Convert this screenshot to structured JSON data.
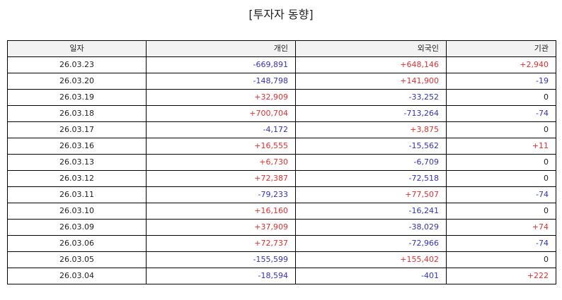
{
  "title": "[투자자 동향]",
  "colors": {
    "positive": "#e03030",
    "negative": "#3333bb",
    "neutral": "#222222"
  },
  "table": {
    "headers": [
      "일자",
      "개인",
      "외국인",
      "기관"
    ],
    "rows": [
      [
        "26.03.23",
        "-669,891",
        "+648,146",
        "+2,940"
      ],
      [
        "26.03.20",
        "-148,798",
        "+141,900",
        "-19"
      ],
      [
        "26.03.19",
        "+32,909",
        "-33,252",
        "0"
      ],
      [
        "26.03.18",
        "+700,704",
        "-713,264",
        "-74"
      ],
      [
        "26.03.17",
        "-4,172",
        "+3,875",
        "0"
      ],
      [
        "26.03.16",
        "+16,555",
        "-15,562",
        "+11"
      ],
      [
        "26.03.13",
        "+6,730",
        "-6,709",
        "0"
      ],
      [
        "26.03.12",
        "+72,387",
        "-72,518",
        "0"
      ],
      [
        "26.03.11",
        "-79,233",
        "+77,507",
        "-74"
      ],
      [
        "26.03.10",
        "+16,160",
        "-16,241",
        "0"
      ],
      [
        "26.03.09",
        "+37,909",
        "-38,029",
        "+74"
      ],
      [
        "26.03.06",
        "+72,737",
        "-72,966",
        "-74"
      ],
      [
        "26.03.05",
        "-155,599",
        "+155,402",
        "0"
      ],
      [
        "26.03.04",
        "-18,594",
        "-401",
        "+222"
      ]
    ]
  }
}
